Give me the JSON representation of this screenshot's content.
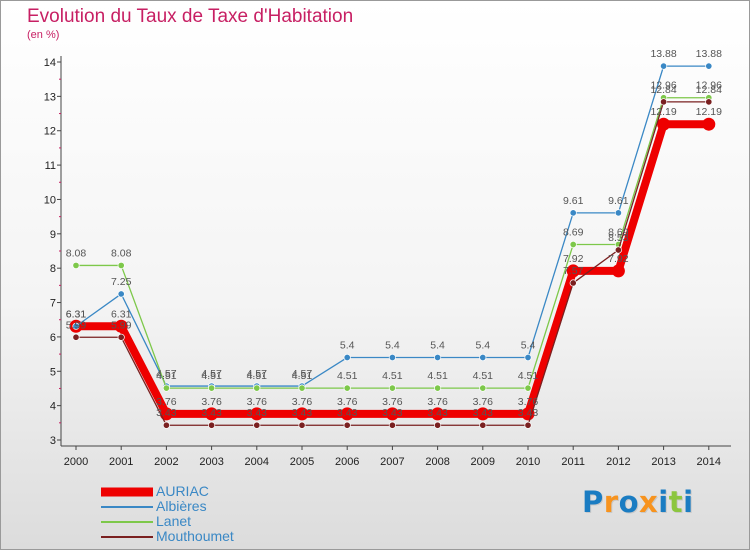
{
  "title": "Evolution du Taux de Taxe d'Habitation",
  "unit": "(en %)",
  "logo": {
    "letters": [
      "P",
      "r",
      "o",
      "x",
      "i",
      "t",
      "i"
    ],
    "colors": [
      "#1a7cc2",
      "#f7931e",
      "#1a7cc2",
      "#f7931e",
      "#1a7cc2",
      "#8cc63f",
      "#1a7cc2"
    ]
  },
  "chart_data": {
    "type": "line",
    "title": "Evolution du Taux de Taxe d'Habitation",
    "ylabel": "(en %)",
    "xlabel": "",
    "x": [
      "2000",
      "2001",
      "2002",
      "2003",
      "2004",
      "2005",
      "2006",
      "2007",
      "2008",
      "2009",
      "2010",
      "2011",
      "2012",
      "2013",
      "2014"
    ],
    "ylim": [
      3,
      14
    ],
    "yticks": [
      "3",
      "4",
      "5",
      "6",
      "7",
      "8",
      "9",
      "10",
      "11",
      "12",
      "13",
      "14"
    ],
    "grid": false,
    "legend_position": "bottom-left",
    "series": [
      {
        "name": "AURIAC",
        "color": "#ee0000",
        "values": [
          6.31,
          6.31,
          3.76,
          3.76,
          3.76,
          3.76,
          3.76,
          3.76,
          3.76,
          3.76,
          3.76,
          7.92,
          7.92,
          12.19,
          12.19
        ],
        "labels": [
          "6.31",
          "6.31",
          "3.76",
          "3.76",
          "3.76",
          "3.76",
          "3.76",
          "3.76",
          "3.76",
          "3.76",
          "3.76",
          "7.92",
          "7.92",
          "12.19",
          "12.19"
        ]
      },
      {
        "name": "Albières",
        "color": "#3a88c5",
        "values": [
          6.31,
          7.25,
          4.57,
          4.57,
          4.57,
          4.57,
          5.4,
          5.4,
          5.4,
          5.4,
          5.4,
          9.61,
          9.61,
          13.88,
          13.88
        ],
        "labels": [
          "6.31",
          "7.25",
          "4.57",
          "4.57",
          "4.57",
          "4.57",
          "5.4",
          "5.4",
          "5.4",
          "5.4",
          "5.4",
          "9.61",
          "9.61",
          "13.88",
          "13.88"
        ]
      },
      {
        "name": "Lanet",
        "color": "#7dc84a",
        "values": [
          8.08,
          8.08,
          4.51,
          4.51,
          4.51,
          4.51,
          4.51,
          4.51,
          4.51,
          4.51,
          4.51,
          8.69,
          8.69,
          12.96,
          12.96
        ],
        "labels": [
          "8.08",
          "8.08",
          "4.51",
          "4.51",
          "4.51",
          "4.51",
          "4.51",
          "4.51",
          "4.51",
          "4.51",
          "4.51",
          "8.69",
          "8.69",
          "12.96",
          "12.96"
        ]
      },
      {
        "name": "Mouthoumet",
        "color": "#7a2020",
        "values": [
          5.99,
          5.99,
          3.43,
          3.43,
          3.43,
          3.43,
          3.43,
          3.43,
          3.43,
          3.43,
          3.43,
          7.57,
          8.53,
          12.84,
          12.84
        ],
        "labels": [
          "5.99",
          "5.99",
          "3.43",
          "3.43",
          "3.43",
          "3.43",
          "3.43",
          "3.43",
          "3.43",
          "3.43",
          "3.43",
          "7.57",
          "8.53",
          "12.84",
          "12.84"
        ]
      }
    ]
  }
}
